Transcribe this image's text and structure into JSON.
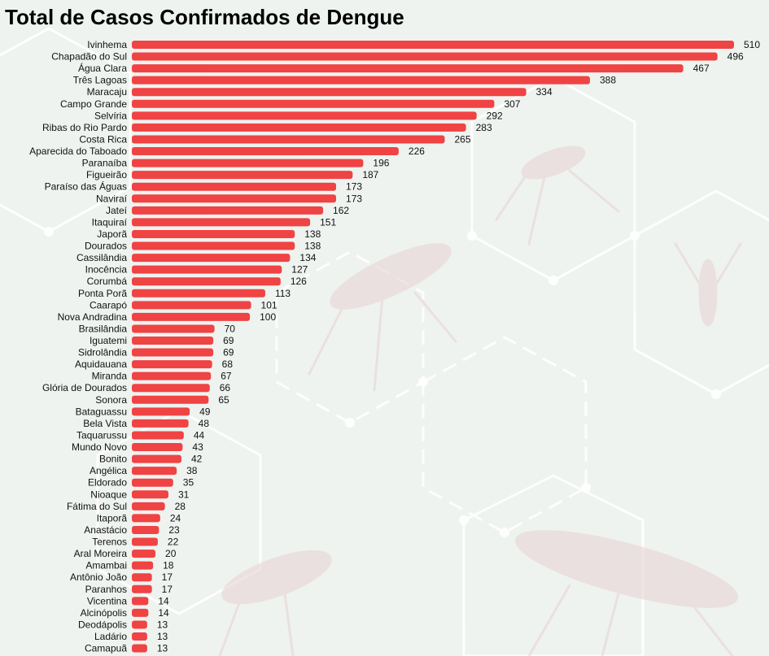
{
  "chart_data": {
    "type": "bar",
    "orientation": "horizontal",
    "title": "Total de Casos Confirmados de Dengue",
    "xlabel": "",
    "ylabel": "",
    "bar_color": "#f04343",
    "background_color": "#eef3f0",
    "grid": false,
    "legend": "none",
    "xlim": [
      0,
      510
    ],
    "categories": [
      "Ivinhema",
      "Chapadão do Sul",
      "Água Clara",
      "Três Lagoas",
      "Maracaju",
      "Campo Grande",
      "Selvíria",
      "Ribas do Rio Pardo",
      "Costa Rica",
      "Aparecida do Taboado",
      "Paranaíba",
      "Figueirão",
      "Paraíso das Águas",
      "Naviraí",
      "Jateí",
      "Itaquiraí",
      "Japorã",
      "Dourados",
      "Cassilândia",
      "Inocência",
      "Corumbá",
      "Ponta Porã",
      "Caarapó",
      "Nova Andradina",
      "Brasilândia",
      "Iguatemi",
      "Sidrolândia",
      "Aquidauana",
      "Miranda",
      "Glória de Dourados",
      "Sonora",
      "Bataguassu",
      "Bela Vista",
      "Taquarussu",
      "Mundo Novo",
      "Bonito",
      "Angélica",
      "Eldorado",
      "Nioaque",
      "Fátima do Sul",
      "Itaporã",
      "Anastácio",
      "Terenos",
      "Aral Moreira",
      "Amambai",
      "Antônio João",
      "Paranhos",
      "Vicentina",
      "Alcinópolis",
      "Deodápolis",
      "Ladário",
      "Camapuã"
    ],
    "values": [
      510,
      496,
      467,
      388,
      334,
      307,
      292,
      283,
      265,
      226,
      196,
      187,
      173,
      173,
      162,
      151,
      138,
      138,
      134,
      127,
      126,
      113,
      101,
      100,
      70,
      69,
      69,
      68,
      67,
      66,
      65,
      49,
      48,
      44,
      43,
      42,
      38,
      35,
      31,
      28,
      24,
      23,
      22,
      20,
      18,
      17,
      17,
      14,
      14,
      13,
      13,
      13
    ]
  }
}
